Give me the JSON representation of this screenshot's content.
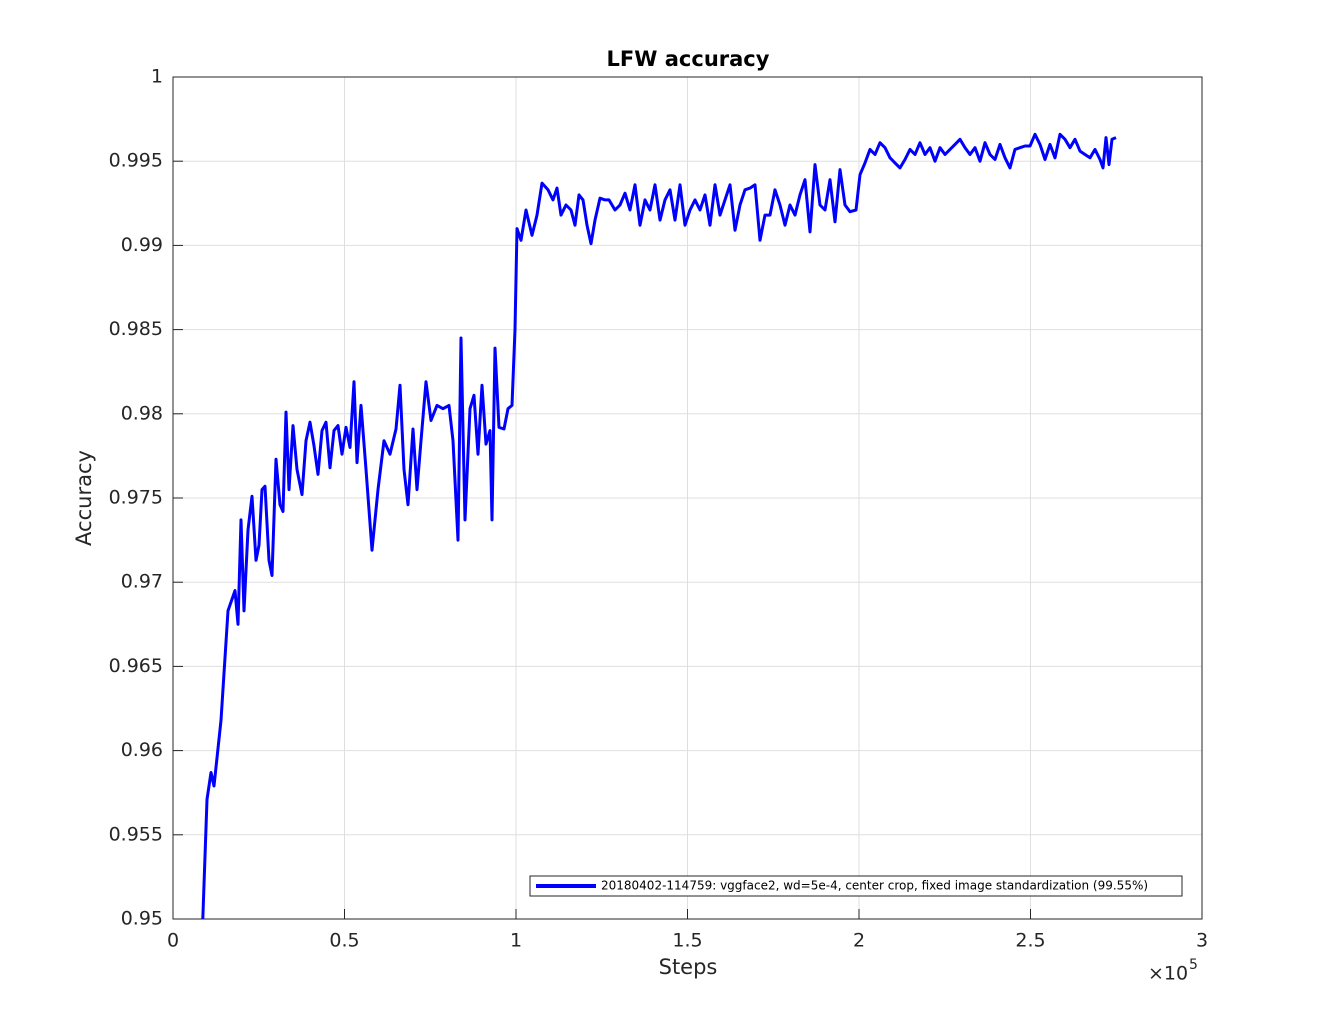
{
  "chart_data": {
    "type": "line",
    "title": "LFW accuracy",
    "xlabel": "Steps",
    "ylabel": "Accuracy",
    "x_scale_label": {
      "base": "×10",
      "exponent": 5
    },
    "xlim": [
      0,
      3
    ],
    "xticks": [
      0,
      0.5,
      1,
      1.5,
      2,
      2.5,
      3
    ],
    "ylim": [
      0.95,
      1
    ],
    "yticks": [
      0.95,
      0.955,
      0.96,
      0.965,
      0.97,
      0.975,
      0.98,
      0.985,
      0.99,
      0.995,
      1
    ],
    "grid": true,
    "legend": "southeast",
    "x": [
      0.087,
      0.0991,
      0.1108,
      0.1195,
      0.1399,
      0.1603,
      0.1808,
      0.1895,
      0.1983,
      0.207,
      0.2187,
      0.2303,
      0.242,
      0.2507,
      0.2595,
      0.2682,
      0.2799,
      0.2886,
      0.3003,
      0.312,
      0.3207,
      0.3294,
      0.3382,
      0.3499,
      0.3615,
      0.3761,
      0.3878,
      0.3994,
      0.4111,
      0.4227,
      0.4344,
      0.4461,
      0.4577,
      0.4694,
      0.481,
      0.4927,
      0.5044,
      0.516,
      0.5277,
      0.5364,
      0.5481,
      0.5627,
      0.5802,
      0.5977,
      0.6152,
      0.6327,
      0.6501,
      0.6618,
      0.6735,
      0.6851,
      0.6997,
      0.7114,
      0.723,
      0.7376,
      0.7522,
      0.7697,
      0.7872,
      0.8047,
      0.8163,
      0.8309,
      0.8397,
      0.8513,
      0.8659,
      0.8776,
      0.8892,
      0.9009,
      0.9125,
      0.9242,
      0.93,
      0.9388,
      0.9504,
      0.965,
      0.9767,
      0.9883,
      0.9971,
      1.0029,
      1.0146,
      1.0292,
      1.0466,
      1.0612,
      1.0758,
      1.0933,
      1.1079,
      1.1195,
      1.1312,
      1.1458,
      1.1603,
      1.172,
      1.1837,
      1.1953,
      1.207,
      1.2187,
      1.2303,
      1.2449,
      1.2595,
      1.2711,
      1.2886,
      1.3032,
      1.3178,
      1.3324,
      1.3469,
      1.3615,
      1.3761,
      1.3907,
      1.4052,
      1.4198,
      1.4344,
      1.449,
      1.4636,
      1.4781,
      1.4927,
      1.5073,
      1.5219,
      1.5364,
      1.551,
      1.5656,
      1.5802,
      1.5948,
      1.6093,
      1.6239,
      1.6385,
      1.6531,
      1.6676,
      1.6822,
      1.6968,
      1.7114,
      1.7259,
      1.7405,
      1.7551,
      1.7697,
      1.7843,
      1.7988,
      1.8134,
      1.828,
      1.8426,
      1.8571,
      1.8717,
      1.8863,
      1.9009,
      1.9155,
      1.93,
      1.9446,
      1.9592,
      1.9738,
      1.9913,
      2.0029,
      2.0175,
      2.0321,
      2.0466,
      2.0612,
      2.0758,
      2.0904,
      2.105,
      2.1195,
      2.1341,
      2.1487,
      2.1633,
      2.1778,
      2.1924,
      2.207,
      2.2216,
      2.2362,
      2.2507,
      2.2653,
      2.2799,
      2.2945,
      2.309,
      2.3236,
      2.3382,
      2.3528,
      2.3673,
      2.3819,
      2.3965,
      2.4111,
      2.4257,
      2.4402,
      2.4548,
      2.4694,
      2.484,
      2.4985,
      2.5131,
      2.5277,
      2.5423,
      2.5569,
      2.5714,
      2.586,
      2.6006,
      2.6152,
      2.6297,
      2.6443,
      2.6589,
      2.6735,
      2.688,
      2.7026,
      2.7114,
      2.7201,
      2.7289,
      2.7376,
      2.7493
    ],
    "series": [
      {
        "name": "20180402-114759: vggface2, wd=5e-4, center crop, fixed image standardization (99.55%)",
        "color": "#0000ff",
        "values": [
          0.95,
          0.9571,
          0.9587,
          0.9579,
          0.9618,
          0.9683,
          0.9695,
          0.9675,
          0.9737,
          0.9683,
          0.9731,
          0.9751,
          0.9713,
          0.9722,
          0.9755,
          0.9757,
          0.9713,
          0.9704,
          0.9773,
          0.9746,
          0.9742,
          0.9801,
          0.9755,
          0.9793,
          0.9767,
          0.9752,
          0.9784,
          0.9795,
          0.9781,
          0.9764,
          0.979,
          0.9795,
          0.9768,
          0.979,
          0.9793,
          0.9776,
          0.9792,
          0.978,
          0.9819,
          0.9771,
          0.9805,
          0.9767,
          0.9719,
          0.9755,
          0.9784,
          0.9776,
          0.9791,
          0.9817,
          0.9767,
          0.9746,
          0.9791,
          0.9755,
          0.9784,
          0.9819,
          0.9796,
          0.9805,
          0.9803,
          0.9805,
          0.9784,
          0.9725,
          0.9845,
          0.9737,
          0.9803,
          0.9811,
          0.9776,
          0.9817,
          0.9782,
          0.979,
          0.9737,
          0.9839,
          0.9792,
          0.9791,
          0.9803,
          0.9805,
          0.985,
          0.991,
          0.9903,
          0.9921,
          0.9906,
          0.9918,
          0.9937,
          0.9933,
          0.9927,
          0.9934,
          0.9918,
          0.9924,
          0.9921,
          0.9912,
          0.993,
          0.9927,
          0.9912,
          0.9901,
          0.9915,
          0.9928,
          0.9927,
          0.9927,
          0.9921,
          0.9924,
          0.9931,
          0.9921,
          0.9936,
          0.9912,
          0.9927,
          0.9921,
          0.9936,
          0.9915,
          0.9927,
          0.9933,
          0.9915,
          0.9936,
          0.9912,
          0.9921,
          0.9927,
          0.9921,
          0.993,
          0.9912,
          0.9936,
          0.9918,
          0.9927,
          0.9936,
          0.9909,
          0.9924,
          0.9933,
          0.9934,
          0.9936,
          0.9903,
          0.9918,
          0.9918,
          0.9933,
          0.9924,
          0.9912,
          0.9924,
          0.9918,
          0.993,
          0.9939,
          0.9908,
          0.9948,
          0.9924,
          0.9921,
          0.9939,
          0.9914,
          0.9945,
          0.9924,
          0.992,
          0.9921,
          0.9942,
          0.9949,
          0.9957,
          0.9954,
          0.9961,
          0.9958,
          0.9952,
          0.9949,
          0.9946,
          0.9951,
          0.9957,
          0.9954,
          0.9961,
          0.9954,
          0.9958,
          0.995,
          0.9958,
          0.9954,
          0.9957,
          0.996,
          0.9963,
          0.9958,
          0.9954,
          0.9958,
          0.995,
          0.9961,
          0.9954,
          0.9951,
          0.996,
          0.9952,
          0.9946,
          0.9957,
          0.9958,
          0.9959,
          0.9959,
          0.9966,
          0.996,
          0.9951,
          0.996,
          0.9952,
          0.9966,
          0.9963,
          0.9958,
          0.9963,
          0.9956,
          0.9954,
          0.9952,
          0.9957,
          0.9951,
          0.9946,
          0.9964,
          0.9948,
          0.9963,
          0.9964
        ]
      }
    ]
  }
}
